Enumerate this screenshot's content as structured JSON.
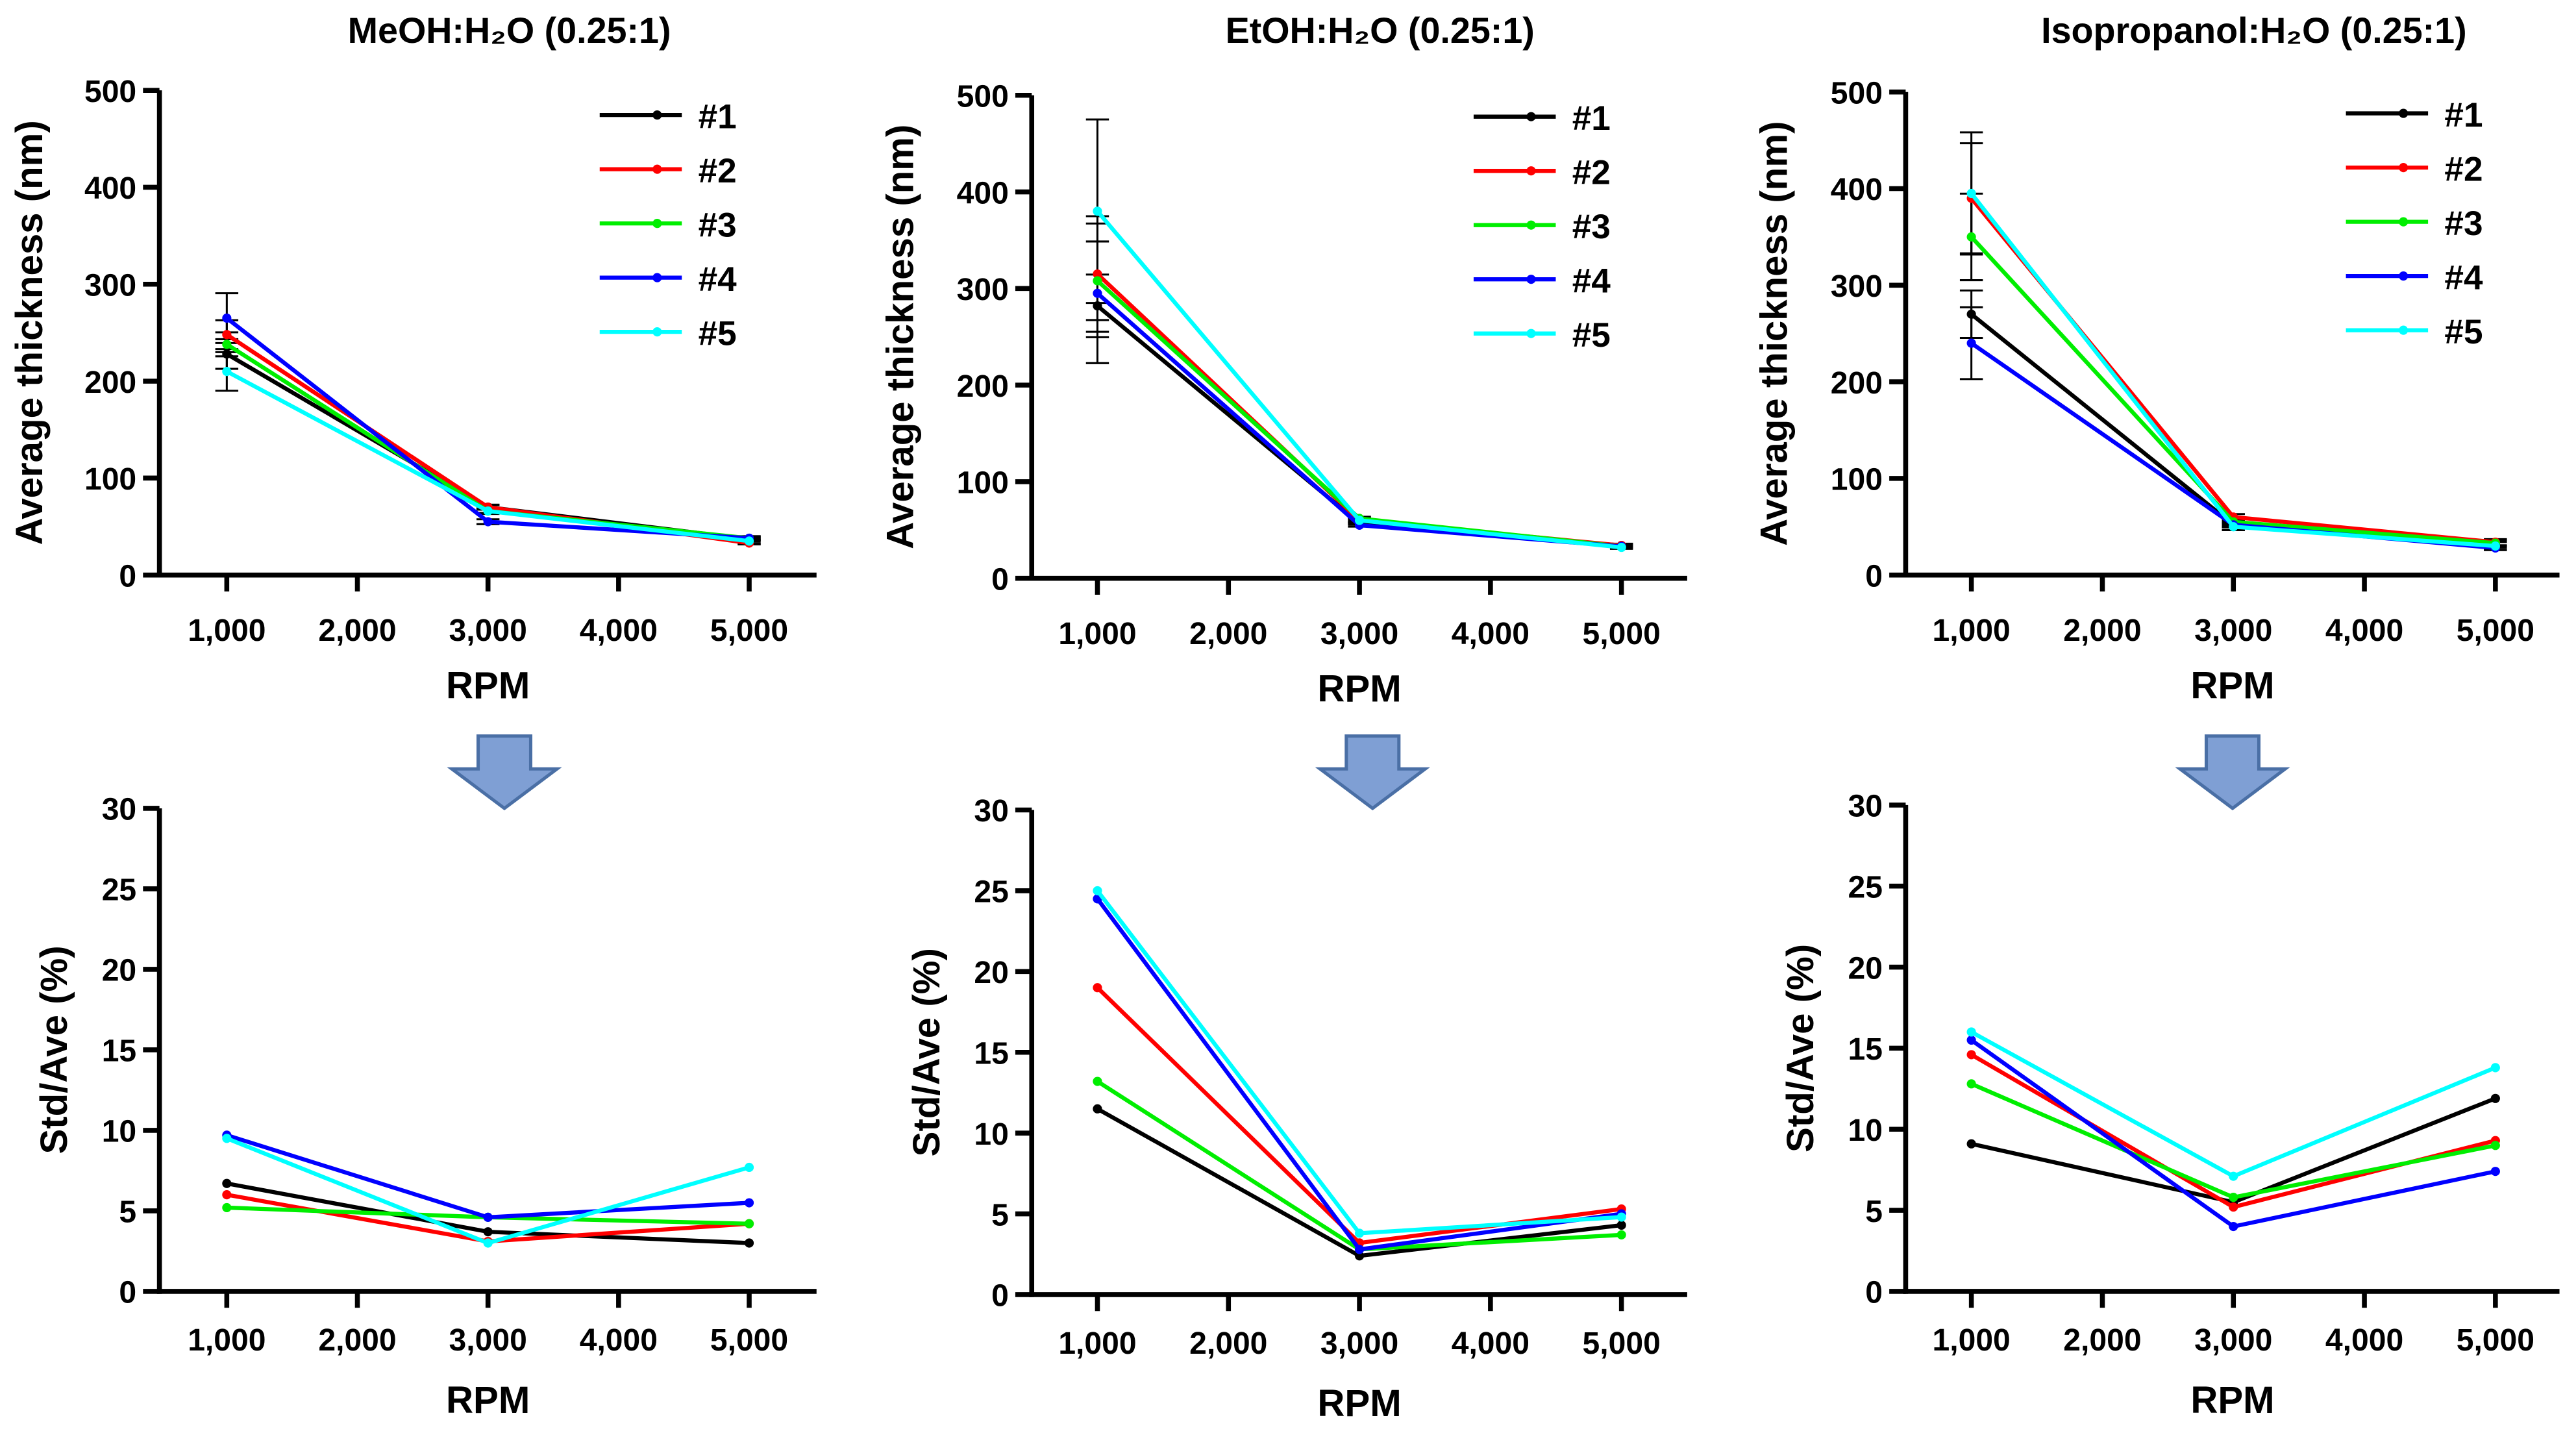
{
  "colors": {
    "#1": "#000000",
    "#2": "#ff0000",
    "#3": "#00ee00",
    "#4": "#0000ff",
    "#5": "#00ffff",
    "arrow": "#7f9fd4",
    "arrow_border": "#4a6fa5"
  },
  "chart_data": [
    {
      "type": "line",
      "title": "MeOH:H₂O (0.25:1)",
      "xlabel": "RPM",
      "ylabel": "Average thickness (nm)",
      "ylim": [
        0,
        500
      ],
      "yticks": [
        "0",
        "100",
        "200",
        "300",
        "400",
        "500"
      ],
      "x": [
        1000,
        3000,
        5000
      ],
      "xticks": [
        "1,000",
        "2,000",
        "3,000",
        "4,000",
        "5,000"
      ],
      "legend": "top-right",
      "error_bars": true,
      "series": [
        {
          "name": "#1",
          "values": [
            228,
            70,
            37
          ]
        },
        {
          "name": "#2",
          "values": [
            248,
            70,
            33
          ]
        },
        {
          "name": "#3",
          "values": [
            238,
            66,
            38
          ]
        },
        {
          "name": "#4",
          "values": [
            265,
            55,
            38
          ]
        },
        {
          "name": "#5",
          "values": [
            210,
            66,
            35
          ]
        }
      ]
    },
    {
      "type": "line",
      "title": "EtOH:H₂O (0.25:1)",
      "xlabel": "RPM",
      "ylabel": "Average thickness (nm)",
      "ylim": [
        0,
        500
      ],
      "yticks": [
        "0",
        "100",
        "200",
        "300",
        "400",
        "500"
      ],
      "x": [
        1000,
        3000,
        5000
      ],
      "xticks": [
        "1,000",
        "2,000",
        "3,000",
        "4,000",
        "5,000"
      ],
      "legend": "top-right",
      "error_bars": true,
      "series": [
        {
          "name": "#1",
          "values": [
            282,
            57,
            34
          ]
        },
        {
          "name": "#2",
          "values": [
            315,
            60,
            34
          ]
        },
        {
          "name": "#3",
          "values": [
            308,
            62,
            33
          ]
        },
        {
          "name": "#4",
          "values": [
            295,
            55,
            33
          ]
        },
        {
          "name": "#5",
          "values": [
            380,
            60,
            32
          ]
        }
      ]
    },
    {
      "type": "line",
      "title": "Isopropanol:H₂O (0.25:1)",
      "xlabel": "RPM",
      "ylabel": "Average thickness (nm)",
      "ylim": [
        0,
        500
      ],
      "yticks": [
        "0",
        "100",
        "200",
        "300",
        "400",
        "500"
      ],
      "x": [
        1000,
        3000,
        5000
      ],
      "xticks": [
        "1,000",
        "2,000",
        "3,000",
        "4,000",
        "5,000"
      ],
      "legend": "top-right",
      "error_bars": true,
      "series": [
        {
          "name": "#1",
          "values": [
            270,
            52,
            32
          ]
        },
        {
          "name": "#2",
          "values": [
            390,
            60,
            34
          ]
        },
        {
          "name": "#3",
          "values": [
            350,
            55,
            33
          ]
        },
        {
          "name": "#4",
          "values": [
            240,
            52,
            28
          ]
        },
        {
          "name": "#5",
          "values": [
            395,
            50,
            30
          ]
        }
      ]
    },
    {
      "type": "line",
      "title": "",
      "xlabel": "RPM",
      "ylabel": "Std/Ave (%)",
      "ylim": [
        0,
        30
      ],
      "yticks": [
        "0",
        "5",
        "10",
        "15",
        "20",
        "25",
        "30"
      ],
      "x": [
        1000,
        3000,
        5000
      ],
      "xticks": [
        "1,000",
        "2,000",
        "3,000",
        "4,000",
        "5,000"
      ],
      "series": [
        {
          "name": "#1",
          "values": [
            6.7,
            3.7,
            3.0
          ]
        },
        {
          "name": "#2",
          "values": [
            6.0,
            3.1,
            4.2
          ]
        },
        {
          "name": "#3",
          "values": [
            5.2,
            4.6,
            4.2
          ]
        },
        {
          "name": "#4",
          "values": [
            9.7,
            4.6,
            5.5
          ]
        },
        {
          "name": "#5",
          "values": [
            9.5,
            3.0,
            7.7
          ]
        }
      ]
    },
    {
      "type": "line",
      "title": "",
      "xlabel": "RPM",
      "ylabel": "Std/Ave (%)",
      "ylim": [
        0,
        30
      ],
      "yticks": [
        "0",
        "5",
        "10",
        "15",
        "20",
        "25",
        "30"
      ],
      "x": [
        1000,
        3000,
        5000
      ],
      "xticks": [
        "1,000",
        "2,000",
        "3,000",
        "4,000",
        "5,000"
      ],
      "series": [
        {
          "name": "#1",
          "values": [
            11.5,
            2.4,
            4.3
          ]
        },
        {
          "name": "#2",
          "values": [
            19.0,
            3.2,
            5.3
          ]
        },
        {
          "name": "#3",
          "values": [
            13.2,
            2.8,
            3.7
          ]
        },
        {
          "name": "#4",
          "values": [
            24.5,
            2.8,
            5.0
          ]
        },
        {
          "name": "#5",
          "values": [
            25.0,
            3.8,
            4.8
          ]
        }
      ]
    },
    {
      "type": "line",
      "title": "",
      "xlabel": "RPM",
      "ylabel": "Std/Ave (%)",
      "ylim": [
        0,
        30
      ],
      "yticks": [
        "0",
        "5",
        "10",
        "15",
        "20",
        "25",
        "30"
      ],
      "x": [
        1000,
        3000,
        5000
      ],
      "xticks": [
        "1,000",
        "2,000",
        "3,000",
        "4,000",
        "5,000"
      ],
      "series": [
        {
          "name": "#1",
          "values": [
            9.1,
            5.5,
            11.9
          ]
        },
        {
          "name": "#2",
          "values": [
            14.6,
            5.2,
            9.3
          ]
        },
        {
          "name": "#3",
          "values": [
            12.8,
            5.8,
            9.0
          ]
        },
        {
          "name": "#4",
          "values": [
            15.5,
            4.0,
            7.4
          ]
        },
        {
          "name": "#5",
          "values": [
            16.0,
            7.1,
            13.8
          ]
        }
      ]
    }
  ]
}
